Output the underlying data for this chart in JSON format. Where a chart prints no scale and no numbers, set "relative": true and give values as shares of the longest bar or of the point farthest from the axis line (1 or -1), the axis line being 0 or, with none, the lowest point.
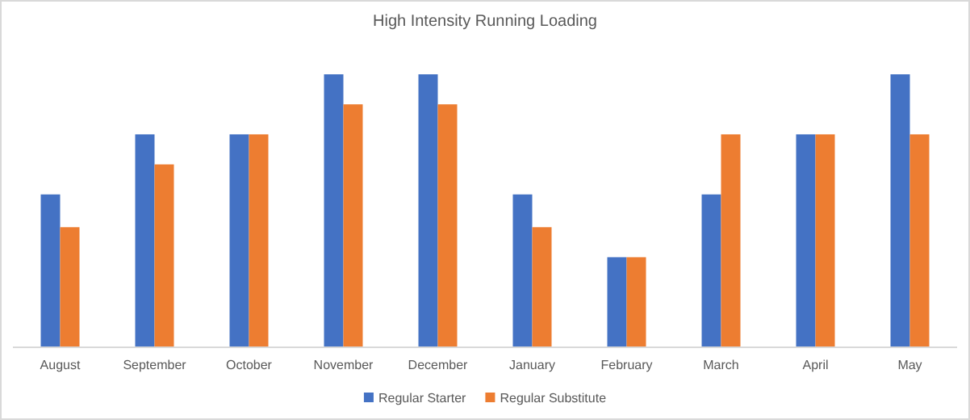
{
  "chart_data": {
    "type": "bar",
    "title": "High Intensity Running Loading",
    "relative": true,
    "legend": "bottom",
    "categories": [
      "August",
      "September",
      "October",
      "November",
      "December",
      "January",
      "February",
      "March",
      "April",
      "May"
    ],
    "series": [
      {
        "name": "Regular Starter",
        "color": "#4472c4",
        "values": [
          0.56,
          0.78,
          0.78,
          1,
          1,
          0.56,
          0.33,
          0.56,
          0.78,
          1
        ]
      },
      {
        "name": "Regular Substitute",
        "color": "#ed7d31",
        "values": [
          0.44,
          0.67,
          0.78,
          0.89,
          0.89,
          0.44,
          0.33,
          0.78,
          0.78,
          0.78
        ]
      }
    ]
  }
}
